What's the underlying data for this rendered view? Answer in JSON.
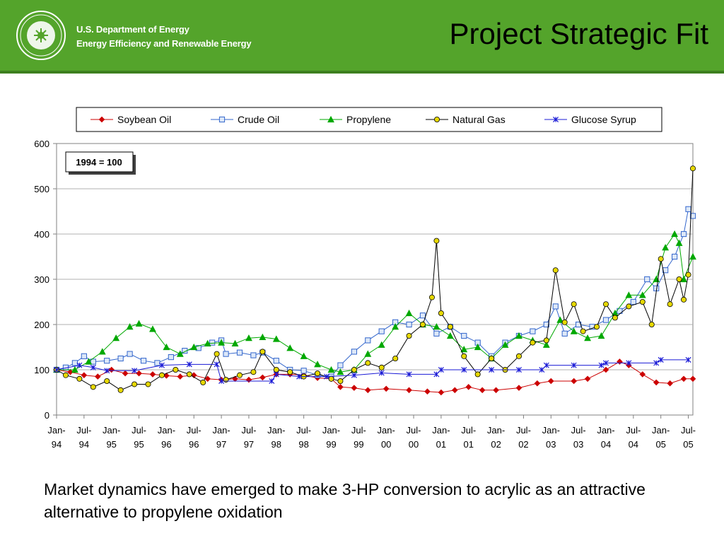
{
  "header": {
    "org_line1": "U.S. Department of Energy",
    "org_line2": "Energy Efficiency and Renewable Energy",
    "title": "Project Strategic Fit",
    "logo_icon": "doe-seal-icon",
    "background_color": "#54a42b"
  },
  "caption": "Market dynamics have emerged to make 3-HP conversion to acrylic as an attractive alternative to propylene oxidation",
  "chart_data": {
    "type": "line",
    "annotation": "1994 = 100",
    "ylim": [
      0,
      600
    ],
    "yticks": [
      0,
      100,
      200,
      300,
      400,
      500,
      600
    ],
    "legend_position": "top",
    "grid": true,
    "x_start": "1994-01",
    "x_end": "2005-08",
    "xticks": [
      {
        "x": "1994-01",
        "line1": "Jan-",
        "line2": "94"
      },
      {
        "x": "1994-07",
        "line1": "Jul-",
        "line2": "94"
      },
      {
        "x": "1995-01",
        "line1": "Jan-",
        "line2": "95"
      },
      {
        "x": "1995-07",
        "line1": "Jul-",
        "line2": "95"
      },
      {
        "x": "1996-01",
        "line1": "Jan-",
        "line2": "96"
      },
      {
        "x": "1996-07",
        "line1": "Jul-",
        "line2": "96"
      },
      {
        "x": "1997-01",
        "line1": "Jan-",
        "line2": "97"
      },
      {
        "x": "1997-07",
        "line1": "Jul-",
        "line2": "97"
      },
      {
        "x": "1998-01",
        "line1": "Jan-",
        "line2": "98"
      },
      {
        "x": "1998-07",
        "line1": "Jul-",
        "line2": "98"
      },
      {
        "x": "1999-01",
        "line1": "Jan-",
        "line2": "99"
      },
      {
        "x": "1999-07",
        "line1": "Jul-",
        "line2": "99"
      },
      {
        "x": "2000-01",
        "line1": "Jan-",
        "line2": "00"
      },
      {
        "x": "2000-07",
        "line1": "Jul-",
        "line2": "00"
      },
      {
        "x": "2001-01",
        "line1": "Jan-",
        "line2": "01"
      },
      {
        "x": "2001-07",
        "line1": "Jul-",
        "line2": "01"
      },
      {
        "x": "2002-01",
        "line1": "Jan-",
        "line2": "02"
      },
      {
        "x": "2002-07",
        "line1": "Jul-",
        "line2": "02"
      },
      {
        "x": "2003-01",
        "line1": "Jan-",
        "line2": "03"
      },
      {
        "x": "2003-07",
        "line1": "Jul-",
        "line2": "03"
      },
      {
        "x": "2004-01",
        "line1": "Jan-",
        "line2": "04"
      },
      {
        "x": "2004-07",
        "line1": "Jul-",
        "line2": "04"
      },
      {
        "x": "2005-01",
        "line1": "Jan-",
        "line2": "05"
      },
      {
        "x": "2005-07",
        "line1": "Jul-",
        "line2": "05"
      }
    ],
    "series": [
      {
        "name": "Soybean Oil",
        "color": "#cc0000",
        "marker": "diamond",
        "points": [
          [
            "1994-01",
            100
          ],
          [
            "1994-04",
            95
          ],
          [
            "1994-07",
            88
          ],
          [
            "1994-10",
            85
          ],
          [
            "1995-01",
            100
          ],
          [
            "1995-04",
            92
          ],
          [
            "1995-07",
            92
          ],
          [
            "1995-10",
            90
          ],
          [
            "1996-01",
            87
          ],
          [
            "1996-04",
            85
          ],
          [
            "1996-07",
            88
          ],
          [
            "1996-10",
            80
          ],
          [
            "1997-01",
            78
          ],
          [
            "1997-04",
            80
          ],
          [
            "1997-07",
            78
          ],
          [
            "1997-10",
            83
          ],
          [
            "1998-01",
            90
          ],
          [
            "1998-04",
            90
          ],
          [
            "1998-07",
            88
          ],
          [
            "1998-10",
            82
          ],
          [
            "1999-01",
            80
          ],
          [
            "1999-03",
            62
          ],
          [
            "1999-06",
            60
          ],
          [
            "1999-09",
            55
          ],
          [
            "2000-01",
            58
          ],
          [
            "2000-06",
            55
          ],
          [
            "2000-10",
            52
          ],
          [
            "2001-01",
            50
          ],
          [
            "2001-04",
            55
          ],
          [
            "2001-07",
            62
          ],
          [
            "2001-10",
            55
          ],
          [
            "2002-01",
            55
          ],
          [
            "2002-06",
            60
          ],
          [
            "2002-10",
            70
          ],
          [
            "2003-01",
            75
          ],
          [
            "2003-06",
            75
          ],
          [
            "2003-09",
            80
          ],
          [
            "2004-01",
            100
          ],
          [
            "2004-04",
            118
          ],
          [
            "2004-06",
            110
          ],
          [
            "2004-09",
            90
          ],
          [
            "2004-12",
            72
          ],
          [
            "2005-03",
            70
          ],
          [
            "2005-06",
            80
          ],
          [
            "2005-08",
            80
          ]
        ]
      },
      {
        "name": "Crude Oil",
        "color": "#3366cc",
        "marker": "square",
        "points": [
          [
            "1994-01",
            100
          ],
          [
            "1994-03",
            105
          ],
          [
            "1994-05",
            115
          ],
          [
            "1994-07",
            130
          ],
          [
            "1994-09",
            118
          ],
          [
            "1994-12",
            120
          ],
          [
            "1995-03",
            125
          ],
          [
            "1995-05",
            135
          ],
          [
            "1995-08",
            120
          ],
          [
            "1995-11",
            115
          ],
          [
            "1996-02",
            128
          ],
          [
            "1996-05",
            142
          ],
          [
            "1996-08",
            148
          ],
          [
            "1996-11",
            160
          ],
          [
            "1997-01",
            165
          ],
          [
            "1997-02",
            135
          ],
          [
            "1997-05",
            138
          ],
          [
            "1997-08",
            132
          ],
          [
            "1997-10",
            138
          ],
          [
            "1998-01",
            120
          ],
          [
            "1998-04",
            100
          ],
          [
            "1998-07",
            98
          ],
          [
            "1998-10",
            88
          ],
          [
            "1999-01",
            85
          ],
          [
            "1999-03",
            110
          ],
          [
            "1999-06",
            140
          ],
          [
            "1999-09",
            165
          ],
          [
            "1999-12",
            185
          ],
          [
            "2000-03",
            205
          ],
          [
            "2000-06",
            200
          ],
          [
            "2000-09",
            220
          ],
          [
            "2000-12",
            180
          ],
          [
            "2001-03",
            195
          ],
          [
            "2001-06",
            175
          ],
          [
            "2001-09",
            160
          ],
          [
            "2001-12",
            130
          ],
          [
            "2002-03",
            160
          ],
          [
            "2002-06",
            175
          ],
          [
            "2002-09",
            185
          ],
          [
            "2002-12",
            200
          ],
          [
            "2003-02",
            240
          ],
          [
            "2003-04",
            180
          ],
          [
            "2003-07",
            200
          ],
          [
            "2003-10",
            195
          ],
          [
            "2004-01",
            210
          ],
          [
            "2004-04",
            230
          ],
          [
            "2004-07",
            250
          ],
          [
            "2004-10",
            300
          ],
          [
            "2004-12",
            280
          ],
          [
            "2005-02",
            320
          ],
          [
            "2005-04",
            350
          ],
          [
            "2005-06",
            400
          ],
          [
            "2005-07",
            455
          ],
          [
            "2005-08",
            440
          ]
        ]
      },
      {
        "name": "Propylene",
        "color": "#00a800",
        "marker": "triangle",
        "points": [
          [
            "1994-01",
            100
          ],
          [
            "1994-05",
            100
          ],
          [
            "1994-08",
            118
          ],
          [
            "1994-11",
            140
          ],
          [
            "1995-02",
            170
          ],
          [
            "1995-05",
            195
          ],
          [
            "1995-07",
            202
          ],
          [
            "1995-10",
            190
          ],
          [
            "1996-01",
            150
          ],
          [
            "1996-04",
            135
          ],
          [
            "1996-07",
            150
          ],
          [
            "1996-10",
            158
          ],
          [
            "1997-01",
            160
          ],
          [
            "1997-04",
            158
          ],
          [
            "1997-07",
            170
          ],
          [
            "1997-10",
            172
          ],
          [
            "1998-01",
            168
          ],
          [
            "1998-04",
            148
          ],
          [
            "1998-07",
            130
          ],
          [
            "1998-10",
            112
          ],
          [
            "1999-01",
            100
          ],
          [
            "1999-03",
            95
          ],
          [
            "1999-06",
            100
          ],
          [
            "1999-09",
            135
          ],
          [
            "1999-12",
            155
          ],
          [
            "2000-03",
            195
          ],
          [
            "2000-06",
            225
          ],
          [
            "2000-09",
            200
          ],
          [
            "2000-12",
            195
          ],
          [
            "2001-03",
            175
          ],
          [
            "2001-06",
            145
          ],
          [
            "2001-09",
            150
          ],
          [
            "2001-12",
            125
          ],
          [
            "2002-03",
            155
          ],
          [
            "2002-06",
            175
          ],
          [
            "2002-09",
            165
          ],
          [
            "2002-12",
            155
          ],
          [
            "2003-03",
            210
          ],
          [
            "2003-06",
            185
          ],
          [
            "2003-09",
            170
          ],
          [
            "2003-12",
            175
          ],
          [
            "2004-03",
            225
          ],
          [
            "2004-06",
            265
          ],
          [
            "2004-09",
            265
          ],
          [
            "2004-12",
            300
          ],
          [
            "2005-02",
            370
          ],
          [
            "2005-04",
            400
          ],
          [
            "2005-05",
            380
          ],
          [
            "2005-06",
            300
          ],
          [
            "2005-08",
            350
          ]
        ]
      },
      {
        "name": "Natural Gas",
        "color": "#e6d800",
        "marker": "circle",
        "points": [
          [
            "1994-01",
            100
          ],
          [
            "1994-03",
            88
          ],
          [
            "1994-06",
            80
          ],
          [
            "1994-09",
            62
          ],
          [
            "1994-12",
            75
          ],
          [
            "1995-03",
            55
          ],
          [
            "1995-06",
            68
          ],
          [
            "1995-09",
            68
          ],
          [
            "1995-12",
            88
          ],
          [
            "1996-03",
            100
          ],
          [
            "1996-06",
            90
          ],
          [
            "1996-09",
            72
          ],
          [
            "1996-12",
            135
          ],
          [
            "1997-02",
            78
          ],
          [
            "1997-05",
            88
          ],
          [
            "1997-08",
            95
          ],
          [
            "1997-10",
            140
          ],
          [
            "1998-01",
            100
          ],
          [
            "1998-04",
            95
          ],
          [
            "1998-07",
            85
          ],
          [
            "1998-10",
            92
          ],
          [
            "1999-01",
            80
          ],
          [
            "1999-03",
            75
          ],
          [
            "1999-06",
            100
          ],
          [
            "1999-09",
            115
          ],
          [
            "1999-12",
            105
          ],
          [
            "2000-03",
            125
          ],
          [
            "2000-06",
            175
          ],
          [
            "2000-09",
            200
          ],
          [
            "2000-11",
            260
          ],
          [
            "2000-12",
            385
          ],
          [
            "2001-01",
            225
          ],
          [
            "2001-03",
            195
          ],
          [
            "2001-06",
            130
          ],
          [
            "2001-09",
            90
          ],
          [
            "2001-12",
            125
          ],
          [
            "2002-03",
            100
          ],
          [
            "2002-06",
            130
          ],
          [
            "2002-09",
            160
          ],
          [
            "2002-12",
            165
          ],
          [
            "2003-02",
            320
          ],
          [
            "2003-04",
            205
          ],
          [
            "2003-06",
            245
          ],
          [
            "2003-08",
            185
          ],
          [
            "2003-11",
            195
          ],
          [
            "2004-01",
            245
          ],
          [
            "2004-03",
            215
          ],
          [
            "2004-06",
            240
          ],
          [
            "2004-09",
            250
          ],
          [
            "2004-11",
            200
          ],
          [
            "2005-01",
            345
          ],
          [
            "2005-03",
            245
          ],
          [
            "2005-05",
            300
          ],
          [
            "2005-06",
            255
          ],
          [
            "2005-07",
            310
          ],
          [
            "2005-08",
            545
          ]
        ]
      },
      {
        "name": "Glucose Syrup",
        "color": "#1a1ad6",
        "marker": "star",
        "points": [
          [
            "1994-01",
            100
          ],
          [
            "1994-06",
            110
          ],
          [
            "1994-09",
            105
          ],
          [
            "1994-12",
            98
          ],
          [
            "1995-06",
            98
          ],
          [
            "1995-12",
            110
          ],
          [
            "1996-06",
            112
          ],
          [
            "1996-12",
            112
          ],
          [
            "1997-01",
            75
          ],
          [
            "1997-12",
            75
          ],
          [
            "1998-01",
            90
          ],
          [
            "1998-06",
            85
          ],
          [
            "1998-12",
            85
          ],
          [
            "1999-06",
            88
          ],
          [
            "1999-12",
            93
          ],
          [
            "2000-06",
            90
          ],
          [
            "2000-12",
            90
          ],
          [
            "2001-01",
            100
          ],
          [
            "2001-06",
            100
          ],
          [
            "2001-12",
            100
          ],
          [
            "2002-06",
            100
          ],
          [
            "2002-11",
            100
          ],
          [
            "2002-12",
            110
          ],
          [
            "2003-06",
            110
          ],
          [
            "2003-12",
            110
          ],
          [
            "2004-01",
            115
          ],
          [
            "2004-06",
            115
          ],
          [
            "2004-12",
            115
          ],
          [
            "2005-01",
            122
          ],
          [
            "2005-07",
            122
          ]
        ]
      }
    ]
  }
}
